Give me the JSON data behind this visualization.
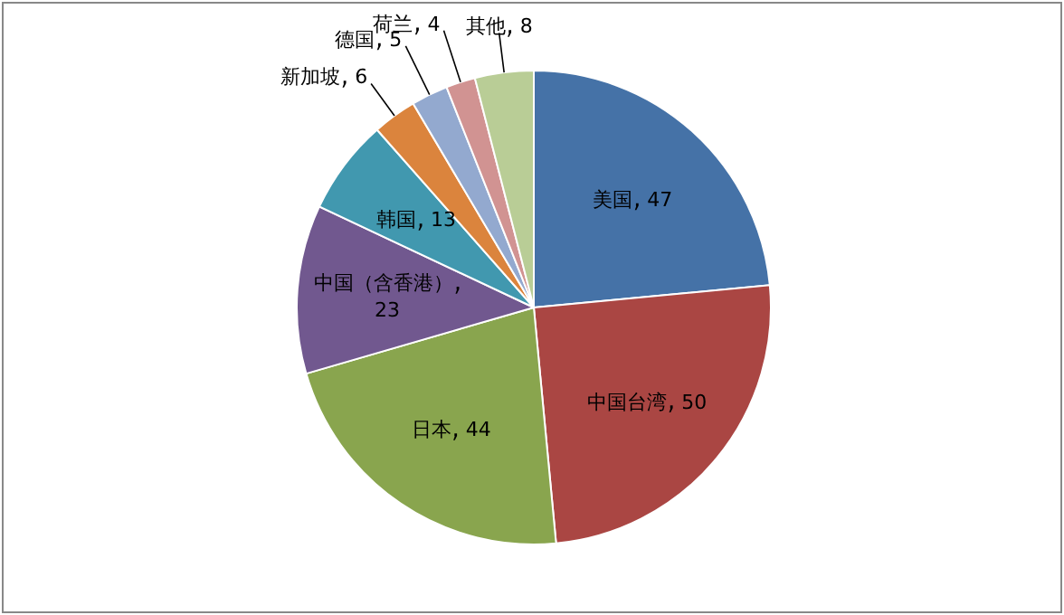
{
  "chart_data": {
    "type": "pie",
    "categories": [
      "美国",
      "中国台湾",
      "日本",
      "中国（含香港）",
      "韩国",
      "新加坡",
      "德国",
      "荷兰",
      "其他"
    ],
    "values": [
      47,
      50,
      44,
      23,
      13,
      6,
      5,
      4,
      8
    ],
    "colors": [
      "#4572a7",
      "#aa4643",
      "#89a54e",
      "#71588f",
      "#4198af",
      "#db843d",
      "#93a9cf",
      "#d19392",
      "#b9cd96"
    ],
    "data_labels": true,
    "legend": false
  }
}
